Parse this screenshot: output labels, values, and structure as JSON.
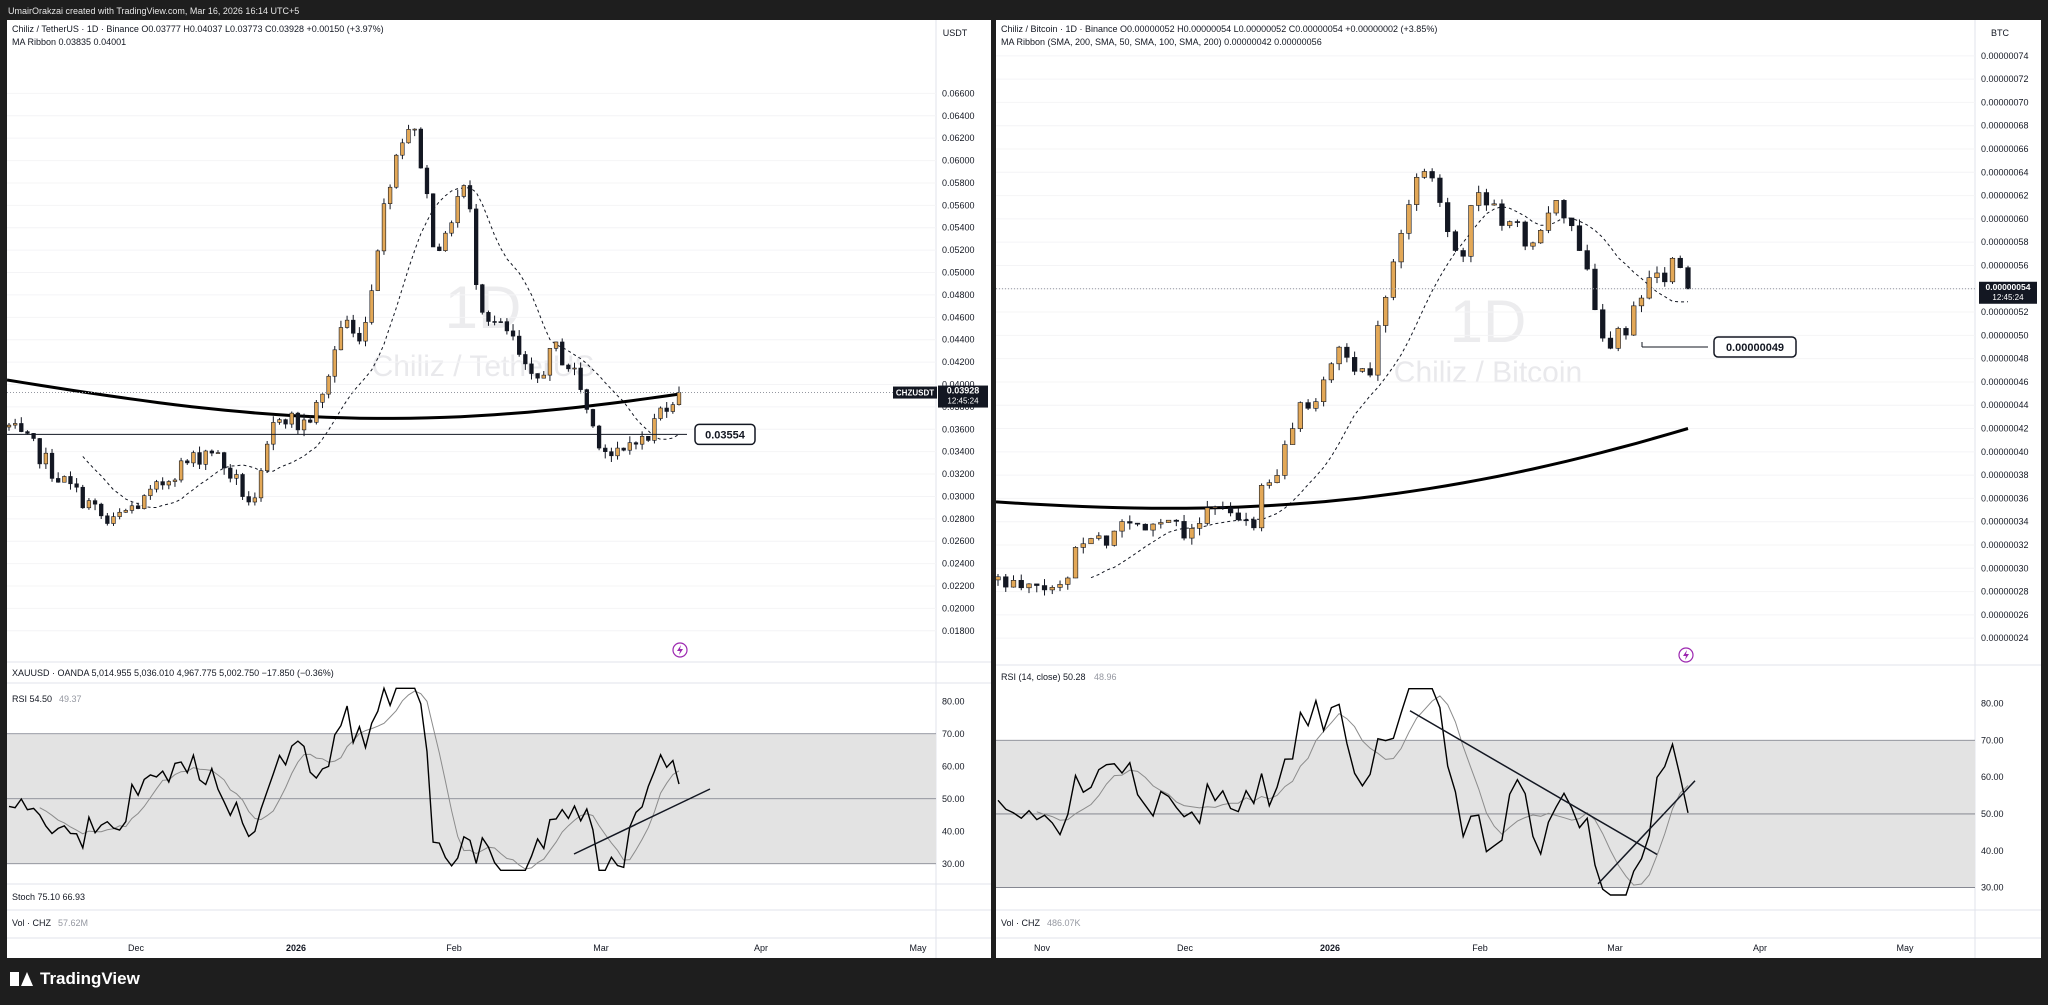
{
  "header_text": "UmairOrakzai created with TradingView.com, Mar 16, 2026 16:14 UTC+5",
  "footer_brand": "TradingView",
  "left": {
    "legend_main": "Chiliz / TetherUS · 1D · Binance  O0.03777  H0.04037  L0.03773  C0.03928  +0.00150 (+3.97%)",
    "legend_ma": "MA Ribbon  0.03835  0.04001",
    "watermark_tf": "1D",
    "watermark_name": "Chiliz / TetherUS",
    "currency": "USDT",
    "price_ticks": [
      "0.06600",
      "0.06400",
      "0.06200",
      "0.06000",
      "0.05800",
      "0.05600",
      "0.05400",
      "0.05200",
      "0.05000",
      "0.04800",
      "0.04600",
      "0.04400",
      "0.04200",
      "0.04000",
      "0.03800",
      "0.03600",
      "0.03400",
      "0.03200",
      "0.03000",
      "0.02800",
      "0.02600",
      "0.02400",
      "0.02200",
      "0.02000",
      "0.01800"
    ],
    "ticker_label": "CHZUSDT",
    "last_price": "0.03928",
    "countdown": "12:45:24",
    "callout": "0.03554",
    "xau_legend": "XAUUSD · OANDA  5,014.955  5,036.010  4,967.775  5,002.750  −17.850 (−0.36%)",
    "rsi_legend": "RSI  54.50",
    "rsi_legend_val2": "49.37",
    "rsi_ticks": [
      "80.00",
      "70.00",
      "60.00",
      "50.00",
      "40.00",
      "30.00"
    ],
    "stoch_legend": "Stoch  75.10  66.93",
    "vol_legend": "Vol · CHZ",
    "vol_value": "57.62M",
    "time_ticks": [
      "Dec",
      "2026",
      "Feb",
      "Mar",
      "Apr",
      "May"
    ]
  },
  "right": {
    "legend_main": "Chiliz / Bitcoin · 1D · Binance  O0.00000052  H0.00000054  L0.00000052  C0.00000054  +0.00000002 (+3.85%)",
    "legend_ma": "MA Ribbon (SMA, 200, SMA, 50, SMA, 100, SMA, 200)  0.00000042  0.00000056",
    "watermark_tf": "1D",
    "watermark_name": "Chiliz / Bitcoin",
    "currency": "BTC",
    "price_ticks": [
      "0.00000074",
      "0.00000072",
      "0.00000070",
      "0.00000068",
      "0.00000066",
      "0.00000064",
      "0.00000062",
      "0.00000060",
      "0.00000058",
      "0.00000056",
      "0.00000054",
      "0.00000052",
      "0.00000050",
      "0.00000048",
      "0.00000046",
      "0.00000044",
      "0.00000042",
      "0.00000040",
      "0.00000038",
      "0.00000036",
      "0.00000034",
      "0.00000032",
      "0.00000030",
      "0.00000028",
      "0.00000026",
      "0.00000024"
    ],
    "last_price": "0.00000054",
    "countdown": "12:45:24",
    "callout": "0.00000049",
    "rsi_legend": "RSI (14, close)  50.28",
    "rsi_legend_val2": "48.96",
    "rsi_ticks": [
      "80.00",
      "70.00",
      "60.00",
      "50.00",
      "40.00",
      "30.00"
    ],
    "vol_legend": "Vol · CHZ",
    "vol_value": "486.07K",
    "time_ticks": [
      "Nov",
      "Dec",
      "2026",
      "Feb",
      "Mar",
      "Apr",
      "May"
    ]
  },
  "colors": {
    "up_candle": "#e3a857",
    "down_candle": "#131722",
    "ma_thick": "#000000",
    "rsi_line": "#000000",
    "rsi_ma": "#8c8c8c",
    "rsi_band": "#e3e3e3",
    "pane_bg": "#ffffff"
  },
  "chart_data": [
    {
      "type": "candlestick",
      "symbol": "CHZUSDT",
      "title": "Chiliz / TetherUS · 1D · Binance",
      "ylim": [
        0.017,
        0.068
      ],
      "last": 0.03928,
      "horizontal_levels": [
        0.03554
      ],
      "ma_long_range": [
        0.0404,
        0.0392
      ],
      "rsi": {
        "ylim": [
          25,
          85
        ],
        "band": [
          30,
          70
        ],
        "last": 54.5,
        "signal": 49.37
      },
      "close_path": [
        0.0362,
        0.0352,
        0.0345,
        0.0335,
        0.0322,
        0.0312,
        0.0303,
        0.0295,
        0.0285,
        0.0272,
        0.0283,
        0.029,
        0.0295,
        0.0303,
        0.0315,
        0.0325,
        0.033,
        0.0336,
        0.0345,
        0.033,
        0.0318,
        0.0303,
        0.029,
        0.0335,
        0.0375,
        0.0372,
        0.0362,
        0.0371,
        0.0385,
        0.0425,
        0.0462,
        0.044,
        0.0458,
        0.0525,
        0.058,
        0.0618,
        0.0635,
        0.0595,
        0.053,
        0.0523,
        0.0565,
        0.058,
        0.048,
        0.046,
        0.045,
        0.0442,
        0.0415,
        0.0398,
        0.0418,
        0.0432,
        0.0418,
        0.0405,
        0.0368,
        0.0349,
        0.0335,
        0.0336,
        0.0357,
        0.0345,
        0.0372,
        0.0386,
        0.0393
      ]
    },
    {
      "type": "candlestick",
      "symbol": "CHZBTC",
      "title": "Chiliz / Bitcoin · 1D · Binance",
      "ylim": [
        2.35e-07,
        7.45e-07
      ],
      "last": 5.4e-07,
      "horizontal_levels": [
        4.9e-07
      ],
      "ma_long_range": [
        3.57e-07,
        4.2e-07
      ],
      "rsi": {
        "ylim": [
          25,
          85
        ],
        "band": [
          30,
          70
        ],
        "last": 50.28,
        "signal": 48.96
      },
      "close_path": [
        2.9e-07,
        2.85e-07,
        2.8e-07,
        2.83e-07,
        2.82e-07,
        2.85e-07,
        3.25e-07,
        3.3e-07,
        3.2e-07,
        3.4e-07,
        3.35e-07,
        3.4e-07,
        3.4e-07,
        3.45e-07,
        3.34e-07,
        3.4e-07,
        3.5e-07,
        3.5e-07,
        3.4e-07,
        3.33e-07,
        3.7e-07,
        3.75e-07,
        4.2e-07,
        4.4e-07,
        4.5e-07,
        4.75e-07,
        4.85e-07,
        4.7e-07,
        4.65e-07,
        5.3e-07,
        5.8e-07,
        6.1e-07,
        6.5e-07,
        6.3e-07,
        5.9e-07,
        5.7e-07,
        6.3e-07,
        6.1e-07,
        6e-07,
        5.9e-07,
        5.8e-07,
        5.9e-07,
        6.1e-07,
        6e-07,
        5.7e-07,
        5.2e-07,
        4.9e-07,
        5e-07,
        5.2e-07,
        5.4e-07,
        5.5e-07,
        5.6e-07,
        5.4e-07
      ]
    }
  ]
}
